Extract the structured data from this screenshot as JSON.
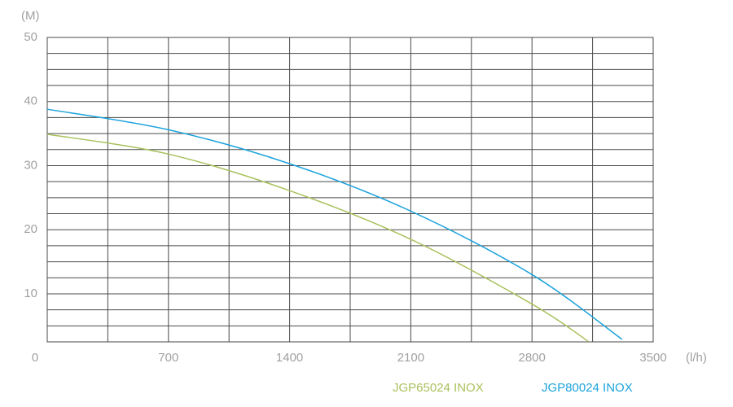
{
  "chart_data": {
    "type": "line",
    "y_unit_label": "(M)",
    "x_unit_label": "(l/h)",
    "xlim": [
      0,
      3500
    ],
    "xticks": [
      0,
      700,
      1400,
      2100,
      2800,
      3500
    ],
    "x_minor_ticks": [
      350,
      1050,
      1750,
      2450,
      3150
    ],
    "ylim": [
      2.5,
      50
    ],
    "yticks": [
      10,
      20,
      30,
      40,
      50
    ],
    "y_minor_ticks": [
      5,
      7.5,
      12.5,
      15,
      17.5,
      22.5,
      25,
      27.5,
      32.5,
      35,
      37.5,
      42.5,
      45,
      47.5
    ],
    "grid": true,
    "series": [
      {
        "name": "JGP65024 INOX",
        "color": "#a9c15c",
        "x": [
          0,
          700,
          1400,
          2100,
          2800,
          3124
        ],
        "values": [
          34.9,
          31.8,
          26.1,
          18.5,
          8.4,
          2.6
        ]
      },
      {
        "name": "JGP80024 INOX",
        "color": "#1ca3dc",
        "x": [
          0,
          700,
          1400,
          2100,
          2800,
          3320
        ],
        "values": [
          38.8,
          35.6,
          30.3,
          22.9,
          13.0,
          2.9
        ]
      }
    ]
  }
}
